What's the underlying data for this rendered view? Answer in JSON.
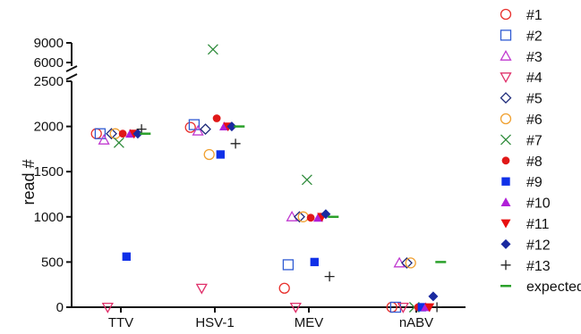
{
  "chart_data": {
    "type": "scatter",
    "ylabel": "read #",
    "categories": [
      "TTV",
      "HSV-1",
      "MEV",
      "nABV"
    ],
    "y_axis": {
      "segments": [
        {
          "range": [
            0,
            2500
          ],
          "ticks": [
            "0",
            "500",
            "1000",
            "1500",
            "2000",
            "2500"
          ]
        },
        {
          "range": [
            6000,
            9000
          ],
          "ticks": [
            "6000",
            "9000"
          ]
        }
      ],
      "broken": true
    },
    "grid": false,
    "legend_position": "right",
    "series": [
      {
        "name": "#1",
        "marker": "circle-open",
        "color": "#e8302d",
        "values": [
          1920,
          1990,
          210,
          0
        ]
      },
      {
        "name": "#2",
        "marker": "square-open",
        "color": "#2f5bd3",
        "values": [
          1920,
          2020,
          470,
          0
        ]
      },
      {
        "name": "#3",
        "marker": "triangle-up-open",
        "color": "#c03ad0",
        "values": [
          1850,
          1950,
          1000,
          490
        ]
      },
      {
        "name": "#4",
        "marker": "triangle-down-open",
        "color": "#e0306a",
        "values": [
          0,
          210,
          0,
          0
        ]
      },
      {
        "name": "#5",
        "marker": "diamond-open",
        "color": "#1d2a7a",
        "values": [
          1920,
          1970,
          1000,
          490
        ]
      },
      {
        "name": "#6",
        "marker": "circle-open",
        "color": "#f0a030",
        "values": [
          1920,
          1690,
          1000,
          490
        ]
      },
      {
        "name": "#7",
        "marker": "x",
        "color": "#2e8b3a",
        "values": [
          1820,
          8000,
          1410,
          0
        ]
      },
      {
        "name": "#8",
        "marker": "circle-filled",
        "color": "#e01818",
        "values": [
          1920,
          2090,
          990,
          0
        ]
      },
      {
        "name": "#9",
        "marker": "square-filled",
        "color": "#1030e8",
        "values": [
          560,
          1690,
          500,
          0
        ]
      },
      {
        "name": "#10",
        "marker": "triangle-up-filled",
        "color": "#b020d8",
        "values": [
          1920,
          2000,
          990,
          0
        ]
      },
      {
        "name": "#11",
        "marker": "triangle-down-filled",
        "color": "#e81010",
        "values": [
          1920,
          2000,
          1000,
          0
        ]
      },
      {
        "name": "#12",
        "marker": "diamond-filled",
        "color": "#1a2aa0",
        "values": [
          1920,
          2000,
          1030,
          120
        ]
      },
      {
        "name": "#13",
        "marker": "plus",
        "color": "#222222",
        "values": [
          1970,
          1810,
          340,
          0
        ]
      },
      {
        "name": "expected",
        "marker": "dash",
        "color": "#2aa02a",
        "values": [
          1920,
          2000,
          1000,
          500
        ]
      }
    ]
  }
}
